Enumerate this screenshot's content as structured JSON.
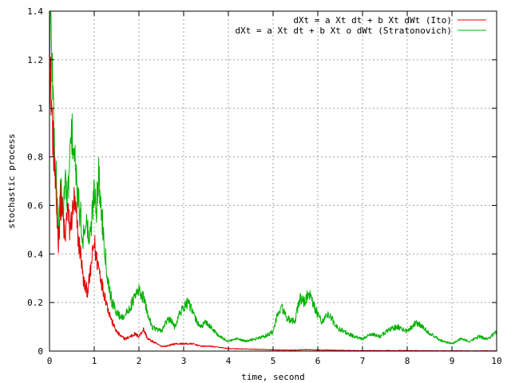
{
  "chart_data": {
    "type": "line",
    "xlabel": "time, second",
    "ylabel": "stochastic process",
    "xlim": [
      0,
      10
    ],
    "ylim": [
      0,
      1.4
    ],
    "xticks": [
      0,
      1,
      2,
      3,
      4,
      5,
      6,
      7,
      8,
      9,
      10
    ],
    "yticks": [
      0,
      0.2,
      0.4,
      0.6,
      0.8,
      1,
      1.2,
      1.4
    ],
    "grid": true,
    "legend_position": "top-right",
    "series": [
      {
        "name": "dXt = a Xt dt + b Xt dWt (Ito)",
        "color": "#e00000",
        "x": [
          0,
          0.03,
          0.06,
          0.1,
          0.15,
          0.2,
          0.25,
          0.3,
          0.35,
          0.4,
          0.45,
          0.5,
          0.55,
          0.6,
          0.65,
          0.7,
          0.75,
          0.8,
          0.85,
          0.9,
          0.95,
          1.0,
          1.05,
          1.1,
          1.15,
          1.2,
          1.25,
          1.3,
          1.4,
          1.5,
          1.6,
          1.7,
          1.8,
          1.9,
          2.0,
          2.1,
          2.2,
          2.3,
          2.4,
          2.5,
          2.6,
          2.8,
          3.0,
          3.2,
          3.4,
          3.6,
          3.8,
          4.0,
          4.5,
          5.0,
          5.5,
          5.8,
          6.0,
          6.5,
          7.0,
          7.5,
          8.0,
          8.5,
          9.0,
          9.5,
          10.0
        ],
        "y": [
          1.15,
          1.1,
          0.95,
          0.8,
          0.6,
          0.45,
          0.62,
          0.55,
          0.45,
          0.6,
          0.5,
          0.55,
          0.62,
          0.55,
          0.45,
          0.4,
          0.3,
          0.26,
          0.25,
          0.3,
          0.38,
          0.45,
          0.38,
          0.35,
          0.3,
          0.25,
          0.22,
          0.18,
          0.12,
          0.08,
          0.06,
          0.05,
          0.06,
          0.07,
          0.06,
          0.09,
          0.05,
          0.04,
          0.03,
          0.02,
          0.02,
          0.03,
          0.03,
          0.03,
          0.02,
          0.02,
          0.015,
          0.01,
          0.008,
          0.005,
          0.004,
          0.006,
          0.005,
          0.003,
          0.002,
          0.002,
          0.002,
          0.001,
          0.001,
          0.001,
          0.001
        ]
      },
      {
        "name": "dXt = a Xt dt + b Xt o dWt (Stratonovich)",
        "color": "#00b000",
        "x": [
          0,
          0.02,
          0.05,
          0.08,
          0.1,
          0.15,
          0.2,
          0.25,
          0.3,
          0.35,
          0.4,
          0.45,
          0.5,
          0.55,
          0.6,
          0.65,
          0.7,
          0.75,
          0.8,
          0.85,
          0.9,
          0.95,
          1.0,
          1.05,
          1.1,
          1.15,
          1.2,
          1.25,
          1.3,
          1.35,
          1.4,
          1.5,
          1.6,
          1.7,
          1.8,
          1.9,
          2.0,
          2.1,
          2.2,
          2.3,
          2.4,
          2.5,
          2.6,
          2.7,
          2.8,
          2.9,
          3.0,
          3.1,
          3.2,
          3.3,
          3.4,
          3.5,
          3.6,
          3.7,
          3.8,
          3.9,
          4.0,
          4.2,
          4.4,
          4.6,
          4.8,
          5.0,
          5.1,
          5.2,
          5.3,
          5.4,
          5.5,
          5.6,
          5.7,
          5.8,
          5.9,
          6.0,
          6.1,
          6.2,
          6.3,
          6.4,
          6.6,
          6.8,
          7.0,
          7.2,
          7.4,
          7.6,
          7.8,
          8.0,
          8.2,
          8.4,
          8.6,
          8.8,
          9.0,
          9.2,
          9.4,
          9.6,
          9.8,
          10.0
        ],
        "y": [
          1.2,
          1.38,
          1.25,
          1.05,
          0.9,
          0.7,
          0.5,
          0.7,
          0.55,
          0.72,
          0.6,
          0.78,
          0.9,
          0.82,
          0.7,
          0.6,
          0.55,
          0.45,
          0.55,
          0.5,
          0.45,
          0.55,
          0.68,
          0.6,
          0.72,
          0.6,
          0.5,
          0.4,
          0.3,
          0.25,
          0.2,
          0.16,
          0.14,
          0.15,
          0.18,
          0.22,
          0.25,
          0.22,
          0.15,
          0.1,
          0.09,
          0.08,
          0.12,
          0.13,
          0.1,
          0.15,
          0.18,
          0.2,
          0.16,
          0.12,
          0.1,
          0.12,
          0.1,
          0.08,
          0.06,
          0.05,
          0.04,
          0.05,
          0.04,
          0.05,
          0.06,
          0.08,
          0.15,
          0.18,
          0.14,
          0.12,
          0.13,
          0.22,
          0.2,
          0.24,
          0.19,
          0.15,
          0.12,
          0.15,
          0.14,
          0.1,
          0.08,
          0.06,
          0.05,
          0.07,
          0.06,
          0.09,
          0.1,
          0.08,
          0.12,
          0.09,
          0.06,
          0.04,
          0.03,
          0.05,
          0.04,
          0.06,
          0.05,
          0.08
        ]
      }
    ]
  }
}
